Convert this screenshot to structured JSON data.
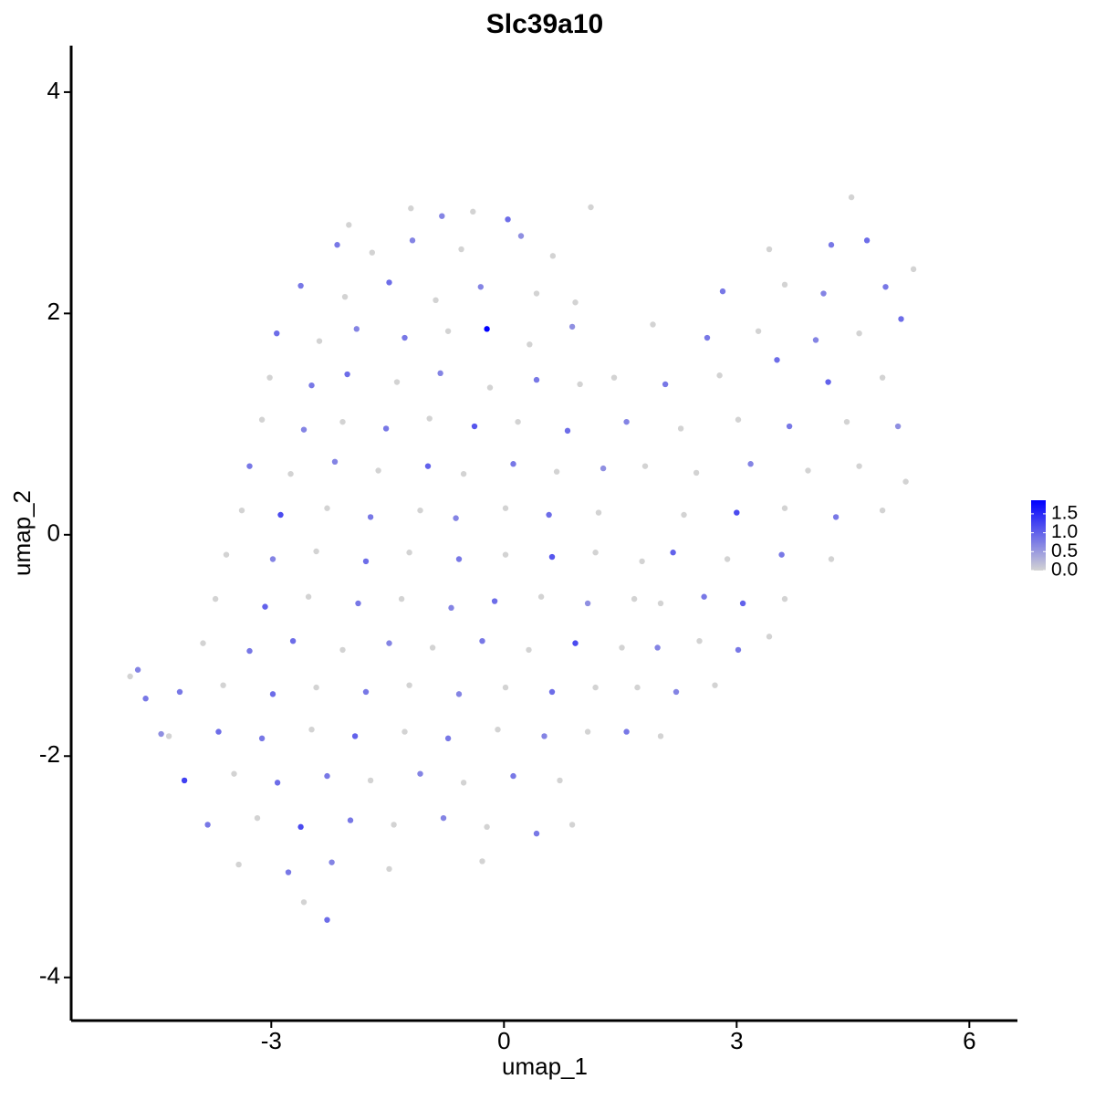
{
  "chart_data": {
    "type": "scatter",
    "title": "Slc39a10",
    "x_label": "umap_1",
    "y_label": "umap_2",
    "xlim": [
      -5.58,
      6.62
    ],
    "ylim": [
      -4.39,
      4.42
    ],
    "xticks": [
      -3,
      0,
      3,
      6
    ],
    "yticks": [
      -4,
      -2,
      0,
      2,
      4
    ],
    "color_low": "#D3D3D3",
    "color_high": "#0000FF",
    "colorbar_lim": [
      0,
      1.86
    ],
    "colorbar_ticks": [
      {
        "value": 1.5,
        "label": "1.5"
      },
      {
        "value": 1,
        "label": "1.0"
      },
      {
        "value": 0.5,
        "label": "0.5"
      },
      {
        "value": 0,
        "label": "0.0"
      }
    ],
    "points": [
      [
        -1.2,
        2.95,
        0
      ],
      [
        -0.8,
        2.88,
        0.7
      ],
      [
        -0.4,
        2.92,
        0
      ],
      [
        0.05,
        2.85,
        0.9
      ],
      [
        -2.0,
        2.8,
        0
      ],
      [
        -2.15,
        2.62,
        0.8
      ],
      [
        -1.7,
        2.55,
        0
      ],
      [
        -1.18,
        2.66,
        0.7
      ],
      [
        -0.55,
        2.58,
        0
      ],
      [
        0.22,
        2.7,
        0.6
      ],
      [
        0.63,
        2.52,
        0
      ],
      [
        -2.62,
        2.25,
        0.8
      ],
      [
        -2.05,
        2.15,
        0
      ],
      [
        -1.48,
        2.28,
        0.9
      ],
      [
        -0.88,
        2.12,
        0
      ],
      [
        -0.3,
        2.24,
        0.7
      ],
      [
        0.42,
        2.18,
        0
      ],
      [
        0.92,
        2.1,
        0
      ],
      [
        -2.93,
        1.82,
        0.9
      ],
      [
        -2.38,
        1.75,
        0
      ],
      [
        -1.9,
        1.86,
        0.7
      ],
      [
        -1.28,
        1.78,
        0.8
      ],
      [
        -0.72,
        1.84,
        0
      ],
      [
        -0.22,
        1.86,
        1.86
      ],
      [
        0.33,
        1.72,
        0
      ],
      [
        0.88,
        1.88,
        0.6
      ],
      [
        -3.02,
        1.42,
        0
      ],
      [
        -2.48,
        1.35,
        0.8
      ],
      [
        -2.02,
        1.45,
        0.9
      ],
      [
        -1.38,
        1.38,
        0
      ],
      [
        -0.82,
        1.46,
        0.7
      ],
      [
        -0.18,
        1.33,
        0
      ],
      [
        0.42,
        1.4,
        0.8
      ],
      [
        0.98,
        1.36,
        0
      ],
      [
        -3.12,
        1.04,
        0
      ],
      [
        -2.58,
        0.95,
        0.7
      ],
      [
        -2.08,
        1.02,
        0
      ],
      [
        -1.52,
        0.96,
        0.8
      ],
      [
        -0.96,
        1.05,
        0
      ],
      [
        -0.38,
        0.98,
        1.1
      ],
      [
        0.18,
        1.02,
        0
      ],
      [
        0.82,
        0.94,
        0.9
      ],
      [
        -3.28,
        0.62,
        0.8
      ],
      [
        -2.75,
        0.55,
        0
      ],
      [
        -2.18,
        0.66,
        0.7
      ],
      [
        -1.62,
        0.58,
        0
      ],
      [
        -0.98,
        0.62,
        1.0
      ],
      [
        -0.52,
        0.55,
        0
      ],
      [
        0.12,
        0.64,
        0.8
      ],
      [
        0.68,
        0.57,
        0
      ],
      [
        1.28,
        0.6,
        0.6
      ],
      [
        -3.38,
        0.22,
        0
      ],
      [
        -2.88,
        0.18,
        1.2
      ],
      [
        -2.28,
        0.24,
        0
      ],
      [
        -1.72,
        0.16,
        0.8
      ],
      [
        -1.08,
        0.22,
        0
      ],
      [
        -0.62,
        0.15,
        0.7
      ],
      [
        0.02,
        0.24,
        0
      ],
      [
        0.58,
        0.18,
        0.9
      ],
      [
        1.22,
        0.2,
        0
      ],
      [
        -3.58,
        -0.18,
        0
      ],
      [
        -2.98,
        -0.22,
        0.7
      ],
      [
        -2.42,
        -0.15,
        0
      ],
      [
        -1.78,
        -0.24,
        0.9
      ],
      [
        -1.22,
        -0.16,
        0
      ],
      [
        -0.58,
        -0.22,
        0.8
      ],
      [
        0.02,
        -0.18,
        0
      ],
      [
        0.62,
        -0.2,
        1.1
      ],
      [
        1.18,
        -0.16,
        0
      ],
      [
        1.78,
        -0.24,
        0
      ],
      [
        -3.72,
        -0.58,
        0
      ],
      [
        -3.08,
        -0.65,
        1.0
      ],
      [
        -2.52,
        -0.56,
        0
      ],
      [
        -1.88,
        -0.62,
        0.8
      ],
      [
        -1.32,
        -0.58,
        0
      ],
      [
        -0.68,
        -0.66,
        0.7
      ],
      [
        -0.12,
        -0.6,
        0.9
      ],
      [
        0.48,
        -0.56,
        0
      ],
      [
        1.08,
        -0.62,
        0.6
      ],
      [
        1.68,
        -0.58,
        0
      ],
      [
        -3.88,
        -0.98,
        0
      ],
      [
        -3.28,
        -1.05,
        0.8
      ],
      [
        -2.72,
        -0.96,
        0.9
      ],
      [
        -2.08,
        -1.04,
        0
      ],
      [
        -1.48,
        -0.98,
        0.7
      ],
      [
        -0.92,
        -1.02,
        0
      ],
      [
        -0.28,
        -0.96,
        0.8
      ],
      [
        0.32,
        -1.04,
        0
      ],
      [
        0.92,
        -0.98,
        1.2
      ],
      [
        1.52,
        -1.02,
        0
      ],
      [
        -4.18,
        -1.42,
        0.8
      ],
      [
        -3.62,
        -1.36,
        0
      ],
      [
        -2.98,
        -1.44,
        0.9
      ],
      [
        -2.42,
        -1.38,
        0
      ],
      [
        -1.78,
        -1.42,
        0.8
      ],
      [
        -1.22,
        -1.36,
        0
      ],
      [
        -0.58,
        -1.44,
        0.7
      ],
      [
        0.02,
        -1.38,
        0
      ],
      [
        0.62,
        -1.42,
        0.9
      ],
      [
        1.18,
        -1.38,
        0
      ],
      [
        -4.32,
        -1.82,
        0
      ],
      [
        -3.68,
        -1.78,
        0.9
      ],
      [
        -3.12,
        -1.84,
        0.8
      ],
      [
        -2.48,
        -1.76,
        0
      ],
      [
        -1.92,
        -1.82,
        1.0
      ],
      [
        -1.28,
        -1.78,
        0
      ],
      [
        -0.72,
        -1.84,
        0.8
      ],
      [
        -0.08,
        -1.76,
        0
      ],
      [
        0.52,
        -1.82,
        0.7
      ],
      [
        1.08,
        -1.78,
        0
      ],
      [
        -4.12,
        -2.22,
        1.3
      ],
      [
        -3.48,
        -2.16,
        0
      ],
      [
        -2.92,
        -2.24,
        0.9
      ],
      [
        -2.28,
        -2.18,
        0.8
      ],
      [
        -1.72,
        -2.22,
        0
      ],
      [
        -1.08,
        -2.16,
        0.7
      ],
      [
        -0.52,
        -2.24,
        0
      ],
      [
        0.12,
        -2.18,
        0.8
      ],
      [
        0.72,
        -2.22,
        0
      ],
      [
        -3.82,
        -2.62,
        0.8
      ],
      [
        -3.18,
        -2.56,
        0
      ],
      [
        -2.62,
        -2.64,
        1.2
      ],
      [
        -1.98,
        -2.58,
        0.8
      ],
      [
        -1.42,
        -2.62,
        0
      ],
      [
        -0.78,
        -2.56,
        0.7
      ],
      [
        -0.22,
        -2.64,
        0
      ],
      [
        0.42,
        -2.7,
        0.8
      ],
      [
        0.88,
        -2.62,
        0
      ],
      [
        -3.42,
        -2.98,
        0
      ],
      [
        -2.78,
        -3.05,
        0.8
      ],
      [
        -2.22,
        -2.96,
        0.7
      ],
      [
        -1.48,
        -3.02,
        0
      ],
      [
        -0.28,
        -2.95,
        0
      ],
      [
        -2.58,
        -3.32,
        0
      ],
      [
        -2.28,
        -3.48,
        0.9
      ],
      [
        -4.82,
        -1.28,
        0
      ],
      [
        -4.72,
        -1.22,
        0.7
      ],
      [
        -4.62,
        -1.48,
        0.8
      ],
      [
        -4.42,
        -1.8,
        0.6
      ],
      [
        4.48,
        3.05,
        0
      ],
      [
        1.12,
        2.96,
        0
      ],
      [
        4.22,
        2.62,
        0.8
      ],
      [
        4.68,
        2.66,
        0.9
      ],
      [
        3.42,
        2.58,
        0
      ],
      [
        2.82,
        2.2,
        0.8
      ],
      [
        3.62,
        2.26,
        0
      ],
      [
        4.12,
        2.18,
        0.7
      ],
      [
        4.92,
        2.24,
        0.8
      ],
      [
        5.28,
        2.4,
        0
      ],
      [
        1.92,
        1.9,
        0
      ],
      [
        2.62,
        1.78,
        0.8
      ],
      [
        3.28,
        1.84,
        0
      ],
      [
        4.02,
        1.76,
        0.7
      ],
      [
        4.58,
        1.82,
        0
      ],
      [
        5.12,
        1.95,
        0.9
      ],
      [
        1.42,
        1.42,
        0
      ],
      [
        2.08,
        1.36,
        0.8
      ],
      [
        2.78,
        1.44,
        0
      ],
      [
        3.52,
        1.58,
        0.9
      ],
      [
        4.18,
        1.38,
        1.0
      ],
      [
        4.88,
        1.42,
        0
      ],
      [
        1.58,
        1.02,
        0.7
      ],
      [
        2.28,
        0.96,
        0
      ],
      [
        3.02,
        1.04,
        0
      ],
      [
        3.68,
        0.98,
        0.8
      ],
      [
        4.42,
        1.02,
        0
      ],
      [
        5.08,
        0.98,
        0.6
      ],
      [
        1.82,
        0.62,
        0
      ],
      [
        2.48,
        0.56,
        0
      ],
      [
        3.18,
        0.64,
        0.7
      ],
      [
        3.92,
        0.58,
        0
      ],
      [
        4.58,
        0.62,
        0
      ],
      [
        5.18,
        0.48,
        0
      ],
      [
        2.32,
        0.18,
        0
      ],
      [
        3.0,
        0.2,
        1.2
      ],
      [
        3.62,
        0.24,
        0
      ],
      [
        4.28,
        0.16,
        0.8
      ],
      [
        4.88,
        0.22,
        0
      ],
      [
        2.18,
        -0.16,
        1.0
      ],
      [
        2.88,
        -0.22,
        0
      ],
      [
        3.58,
        -0.18,
        0.8
      ],
      [
        4.22,
        -0.22,
        0
      ],
      [
        2.02,
        -0.62,
        0
      ],
      [
        2.58,
        -0.56,
        0.8
      ],
      [
        3.08,
        -0.62,
        1.0
      ],
      [
        3.62,
        -0.58,
        0
      ],
      [
        1.98,
        -1.02,
        0.7
      ],
      [
        2.52,
        -0.96,
        0
      ],
      [
        3.02,
        -1.04,
        0.8
      ],
      [
        3.42,
        -0.92,
        0
      ],
      [
        1.72,
        -1.38,
        0
      ],
      [
        2.22,
        -1.42,
        0.7
      ],
      [
        2.72,
        -1.36,
        0
      ],
      [
        1.58,
        -1.78,
        0.8
      ],
      [
        2.02,
        -1.82,
        0
      ]
    ]
  }
}
